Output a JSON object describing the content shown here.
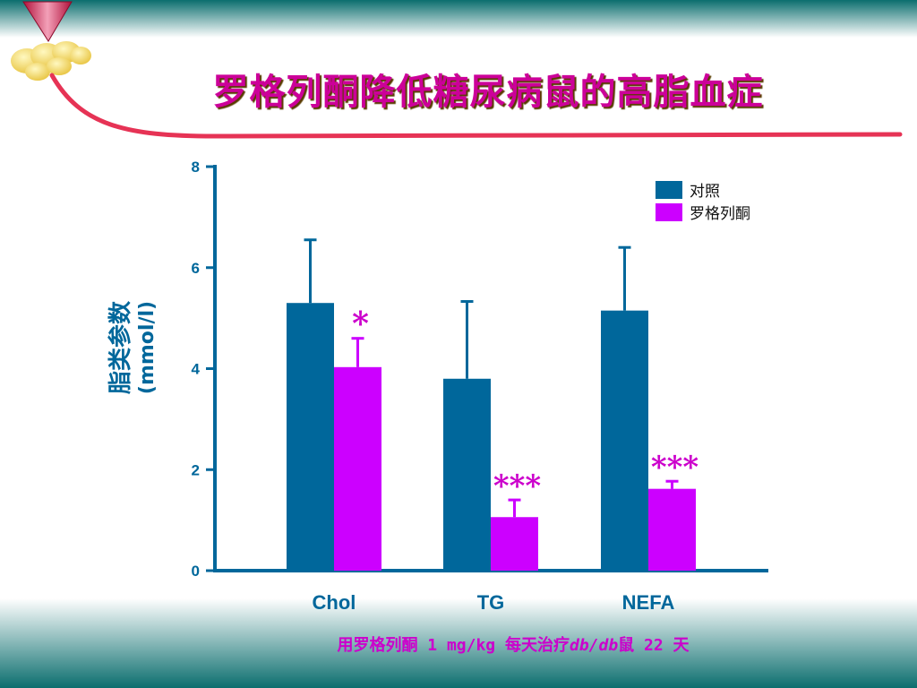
{
  "slide": {
    "title": "罗格列酮降低糖尿病鼠的高脂血症",
    "footnote": {
      "part1": "用罗格列酮 1 mg/kg 每天治疗",
      "italic": "db/db",
      "part2": "鼠 22 天"
    }
  },
  "chart_data": {
    "type": "bar",
    "title": "",
    "xlabel": "",
    "ylabel": [
      "脂类参数",
      "(mmol/l)"
    ],
    "ylim": [
      0,
      8
    ],
    "yticks": [
      0,
      2,
      4,
      6,
      8
    ],
    "categories": [
      "Chol",
      "TG",
      "NEFA"
    ],
    "series": [
      {
        "name": "对照",
        "color": "#00679b",
        "values": [
          5.3,
          3.8,
          5.15
        ],
        "error_upper": [
          6.55,
          5.33,
          6.4
        ]
      },
      {
        "name": "罗格列酮",
        "color": "#cc00ff",
        "values": [
          4.03,
          1.06,
          1.62
        ],
        "error_upper": [
          4.6,
          1.4,
          1.77
        ],
        "significance": [
          "*",
          "***",
          "***"
        ]
      }
    ],
    "legend_position": "top-right",
    "grid": false
  }
}
